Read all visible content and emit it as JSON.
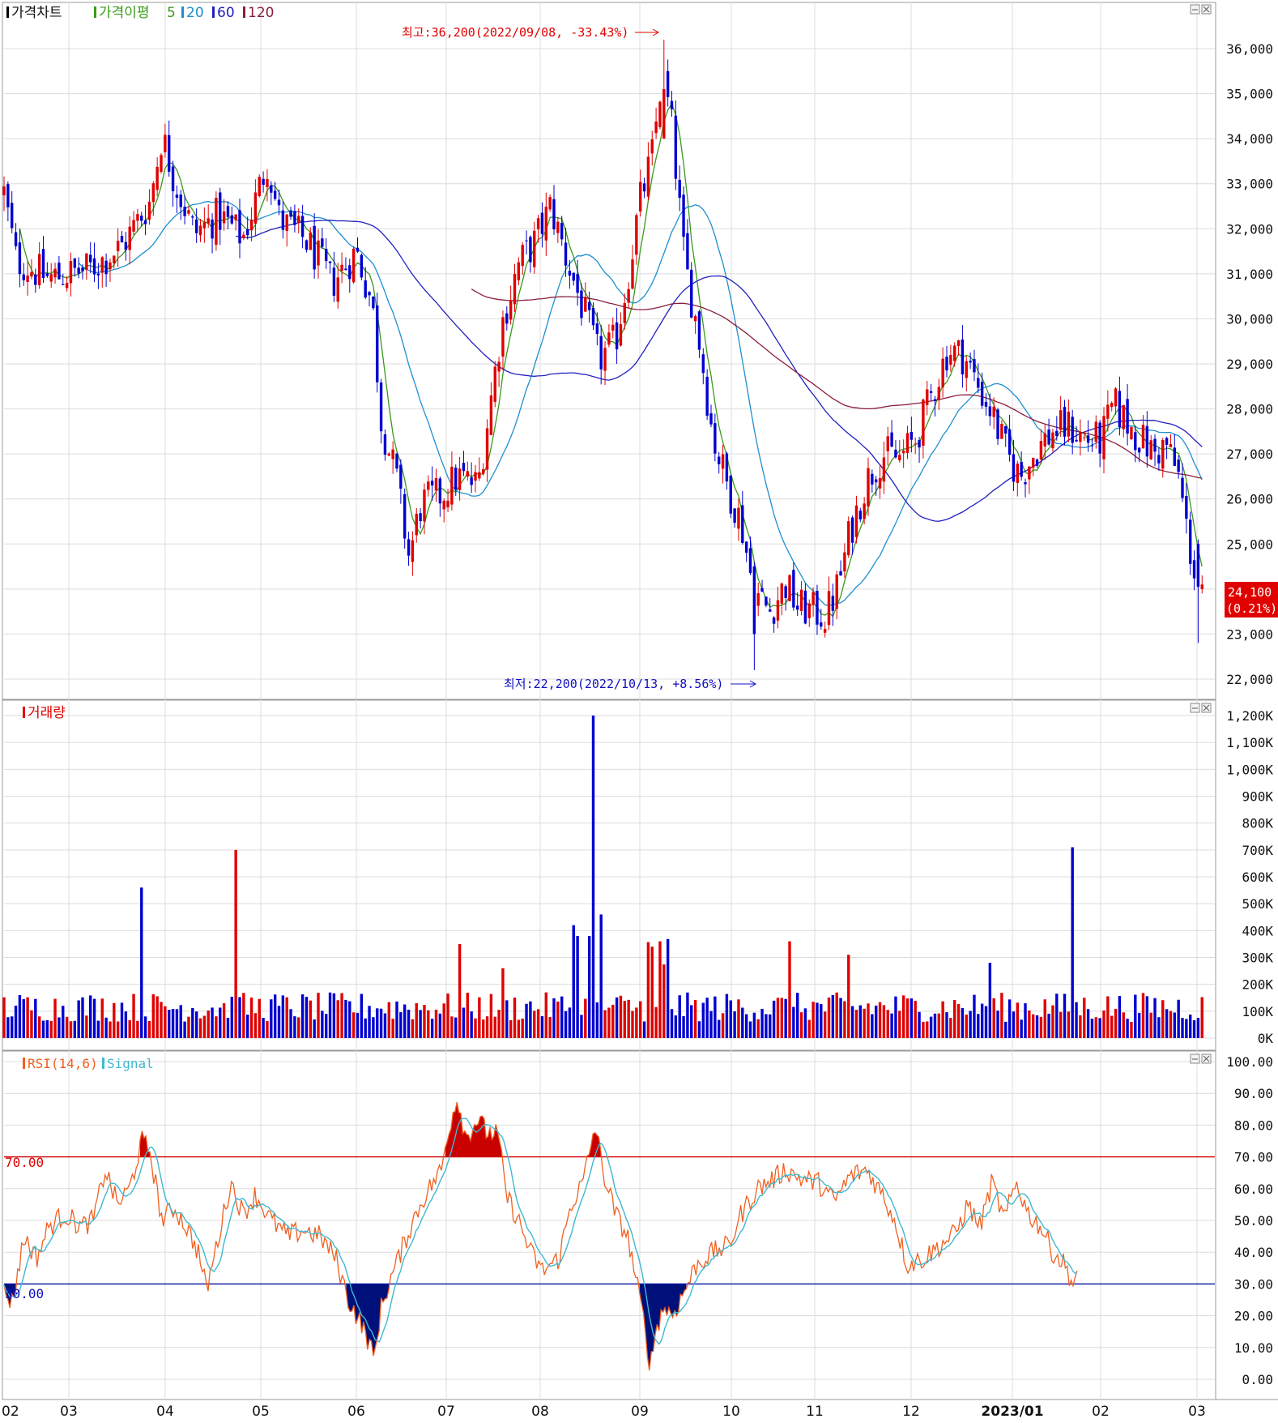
{
  "colors": {
    "up": "#e00000",
    "down": "#0000d0",
    "ma5": "#3a9a1a",
    "ma20": "#1e8fd0",
    "ma60": "#2020c0",
    "ma120": "#8a1f3a",
    "rsi": "#f06020",
    "signal": "#40b8d0",
    "grid": "#dcdcdc",
    "panel_border": "#9a9a9a",
    "text": "#111111",
    "ob_fill": "#c80000",
    "os_fill": "#00107a"
  },
  "price_panel": {
    "title": "가격차트",
    "ma_label": "가격이평",
    "ma_periods": [
      "5",
      "20",
      "60",
      "120"
    ],
    "high_annotation": "최고:36,200(2022/09/08, -33.43%)",
    "low_annotation": "최저:22,200(2022/10/13, +8.56%)",
    "current_price": "24,100",
    "current_change": "(0.21%)",
    "y_ticks": [
      "36,000",
      "35,000",
      "34,000",
      "33,000",
      "32,000",
      "31,000",
      "30,000",
      "29,000",
      "28,000",
      "27,000",
      "26,000",
      "25,000",
      "24,000",
      "23,000",
      "22,000"
    ]
  },
  "volume_panel": {
    "title": "거래량",
    "y_ticks": [
      "1,200K",
      "1,100K",
      "1,000K",
      "900K",
      "800K",
      "700K",
      "600K",
      "500K",
      "400K",
      "300K",
      "200K",
      "100K",
      "0K"
    ]
  },
  "rsi_panel": {
    "title": "RSI(14,6)",
    "signal_label": "Signal",
    "overbought_label": "70.00",
    "oversold_label": "30.00",
    "y_ticks": [
      "100.00",
      "90.00",
      "80.00",
      "70.00",
      "60.00",
      "50.00",
      "40.00",
      "30.00",
      "20.00",
      "10.00",
      "0.00"
    ]
  },
  "x_axis": {
    "labels": [
      "02",
      "03",
      "04",
      "05",
      "06",
      "07",
      "08",
      "09",
      "10",
      "11",
      "12",
      "2023/01",
      "02",
      "03"
    ]
  },
  "chart_data": [
    {
      "type": "candlestick",
      "title": "가격차트",
      "ylim": [
        21700,
        36500
      ],
      "series": [
        {
          "name": "가격차트",
          "key": "close",
          "months": [
            "2022/02",
            "2022/03",
            "2022/04",
            "2022/05",
            "2022/06",
            "2022/07",
            "2022/08",
            "2022/09",
            "2022/10",
            "2022/11",
            "2022/12",
            "2023/01",
            "2023/02",
            "2023/03"
          ],
          "values": [
            31200,
            30700,
            32600,
            32500,
            31100,
            25500,
            31200,
            33000,
            23800,
            26800,
            28600,
            26900,
            27400,
            24100
          ]
        },
        {
          "name": "5",
          "key": "ma5"
        },
        {
          "name": "20",
          "key": "ma20"
        },
        {
          "name": "60",
          "key": "ma60"
        },
        {
          "name": "120",
          "key": "ma120"
        }
      ],
      "high": {
        "value": 36200,
        "date": "2022/09/08"
      },
      "low": {
        "value": 22200,
        "date": "2022/10/13"
      },
      "last": {
        "value": 24100,
        "change_pct": 0.21
      }
    },
    {
      "type": "bar",
      "title": "거래량",
      "ylim": [
        0,
        1200000
      ],
      "peaks": [
        {
          "date": "2022/04",
          "value": 560000
        },
        {
          "date": "2022/05",
          "value": 700000
        },
        {
          "date": "2022/09/08",
          "value": 1200000
        },
        {
          "date": "2023/03",
          "value": 710000
        }
      ]
    },
    {
      "type": "line",
      "title": "RSI(14,6)",
      "ylim": [
        0,
        100
      ],
      "overbought": 70,
      "oversold": 30,
      "series": [
        {
          "name": "RSI(14,6)",
          "months": [
            "2022/02",
            "2022/03",
            "2022/04",
            "2022/05",
            "2022/06",
            "2022/07",
            "2022/08",
            "2022/09",
            "2022/10",
            "2022/11",
            "2022/12",
            "2023/01",
            "2023/02",
            "2023/03"
          ],
          "values": [
            25,
            50,
            74,
            58,
            45,
            12,
            86,
            78,
            8,
            55,
            62,
            38,
            60,
            30
          ]
        },
        {
          "name": "Signal"
        }
      ]
    }
  ]
}
